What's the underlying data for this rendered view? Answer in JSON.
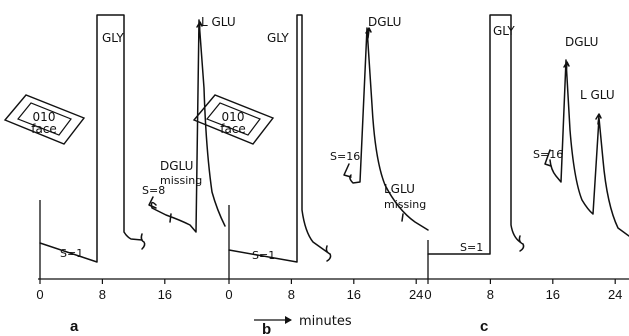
{
  "figure": {
    "x_axis_label": "minutes",
    "panel_letters": [
      "a",
      "b",
      "c"
    ]
  },
  "chart_data": [
    {
      "type": "line",
      "panel": "a",
      "x_ticks": [
        0,
        8,
        16
      ],
      "xlim": [
        0,
        25
      ],
      "crystal_label": [
        "010",
        "face"
      ],
      "peaks": [
        {
          "name": "GLY",
          "x": 9,
          "note": "off scale"
        },
        {
          "name": "L GLU",
          "x": 21
        }
      ],
      "annotations": [
        "S=1",
        "S=8",
        "DGLU",
        "missing"
      ]
    },
    {
      "type": "line",
      "panel": "b",
      "x_ticks": [
        0,
        8,
        16,
        24
      ],
      "xlim": [
        0,
        25
      ],
      "crystal_label": [
        "010",
        "face"
      ],
      "peaks": [
        {
          "name": "GLY",
          "x": 9,
          "note": "off scale"
        },
        {
          "name": "DGLU",
          "x": 18.5
        }
      ],
      "annotations": [
        "S=1",
        "S=16",
        "LGLU",
        "missing"
      ]
    },
    {
      "type": "line",
      "panel": "c",
      "x_ticks": [
        0,
        8,
        16,
        24
      ],
      "xlim": [
        0,
        25
      ],
      "peaks": [
        {
          "name": "GLY",
          "x": 9,
          "note": "off scale"
        },
        {
          "name": "DGLU",
          "x": 18.5
        },
        {
          "name": "L GLU",
          "x": 21.5
        }
      ],
      "annotations": [
        "S=1",
        "S=16"
      ]
    }
  ]
}
